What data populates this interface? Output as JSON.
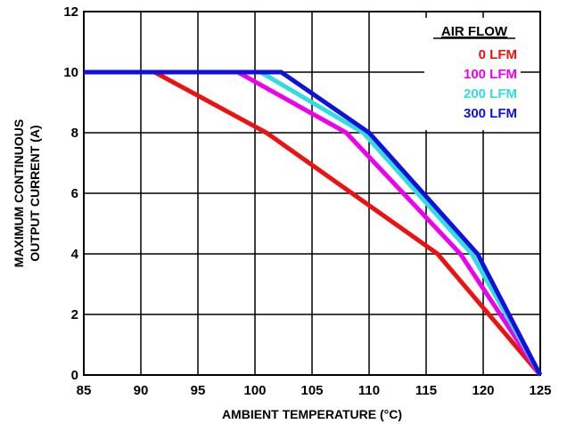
{
  "chart_data": {
    "type": "line",
    "xlabel": "AMBIENT TEMPERATURE (°C)",
    "ylabel": [
      "MAXIMUM CONTINUOUS",
      "OUTPUT CURRENT (A)"
    ],
    "xlim": [
      85,
      125
    ],
    "ylim": [
      0,
      12
    ],
    "xticks": [
      "85",
      "90",
      "95",
      "100",
      "105",
      "110",
      "115",
      "120",
      "125"
    ],
    "yticks": [
      "0",
      "2",
      "4",
      "6",
      "8",
      "10",
      "12"
    ],
    "grid": true,
    "legend": {
      "title": "AIR FLOW",
      "placement": "top-right"
    },
    "series": [
      {
        "name": "0 LFM",
        "color": "#ee1111",
        "points": [
          [
            85,
            10
          ],
          [
            91.2,
            10
          ],
          [
            101,
            8
          ],
          [
            116,
            4
          ],
          [
            125,
            0
          ]
        ]
      },
      {
        "name": "100 LFM",
        "color": "#ee00ee",
        "points": [
          [
            85,
            10
          ],
          [
            98.5,
            10
          ],
          [
            108,
            8
          ],
          [
            118,
            4
          ],
          [
            125,
            0
          ]
        ]
      },
      {
        "name": "200 LFM",
        "color": "#33dddd",
        "points": [
          [
            85,
            10
          ],
          [
            100.5,
            10
          ],
          [
            109.5,
            8
          ],
          [
            119,
            4
          ],
          [
            125,
            0
          ]
        ]
      },
      {
        "name": "300 LFM",
        "color": "#1111dd",
        "points": [
          [
            85,
            10
          ],
          [
            102.3,
            10
          ],
          [
            110,
            8
          ],
          [
            119.5,
            4
          ],
          [
            125,
            0
          ]
        ]
      }
    ]
  }
}
